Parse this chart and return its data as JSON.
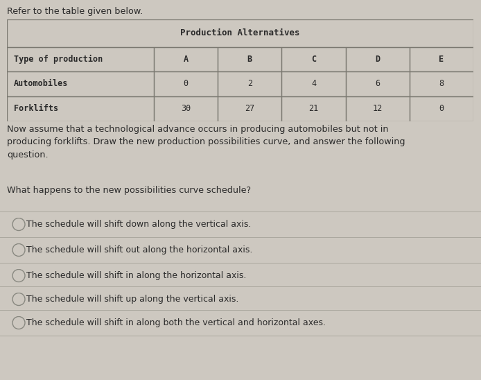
{
  "background_color": "#cdc8c0",
  "intro_text": "Refer to the table given below.",
  "table_title": "Production Alternatives",
  "table_headers": [
    "Type of production",
    "A",
    "B",
    "C",
    "D",
    "E"
  ],
  "table_row1_label": "Automobiles",
  "table_row1_values": [
    "θ",
    "2",
    "4",
    "6",
    "8"
  ],
  "table_row2_label": "Forklifts",
  "table_row2_values": [
    "3θ",
    "27",
    "21",
    "12",
    "θ"
  ],
  "body_text": "Now assume that a technological advance occurs in producing automobiles but not in\nproducing forklifts. Draw the new production possibilities curve, and answer the following\nquestion.",
  "question_text": "What happens to the new possibilities curve schedule?",
  "options": [
    "The schedule will shift down along the vertical axis.",
    "The schedule will shift out along the horizontal axis.",
    "The schedule will shift in along the horizontal axis.",
    "The schedule will shift up along the vertical axis.",
    "The schedule will shift in along both the vertical and horizontal axes."
  ],
  "font_color": "#2a2a2a",
  "table_bg": "#cdc8c0",
  "table_border_color": "#7a7870",
  "option_line_color": "#aaa89e",
  "circle_color": "#888880"
}
